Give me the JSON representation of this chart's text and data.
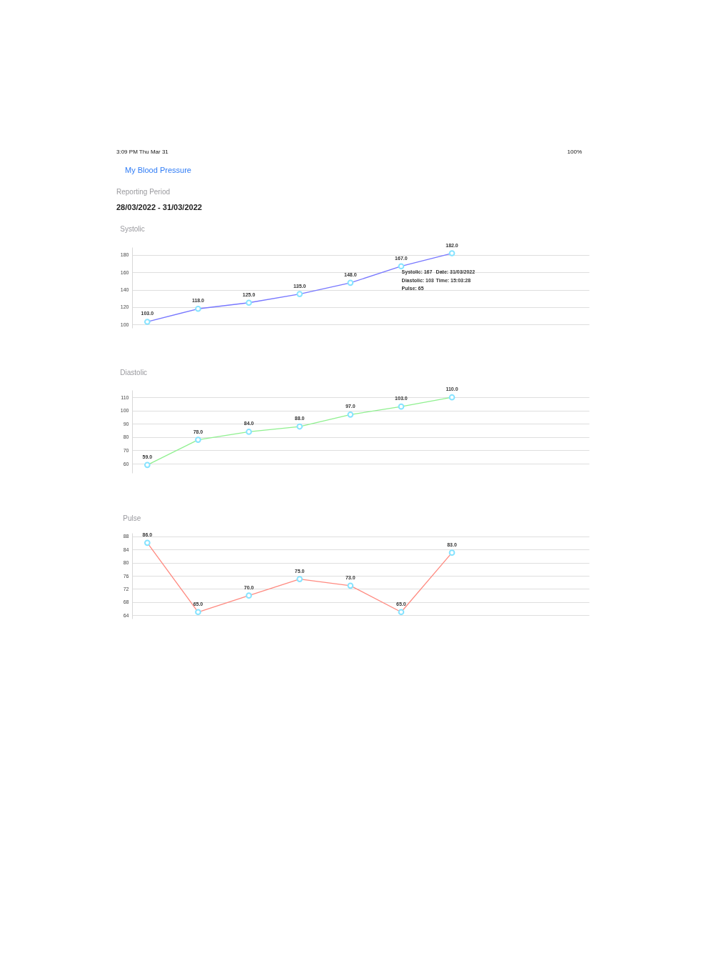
{
  "chart_data": [
    {
      "type": "other",
      "title": "Reporting Period",
      "subtitle": "28/03/2022 - 31/03/2022",
      "annotations": [
        "3:09 PM Thu Mar 31",
        "100%",
        "My Blood Pressure"
      ]
    },
    {
      "type": "line",
      "title": "Systolic",
      "categories": [
        null,
        null,
        null,
        null,
        null,
        null,
        null
      ],
      "values": [
        103,
        118,
        125,
        135,
        148,
        167,
        182
      ],
      "value_labels": [
        "103.0",
        "118.0",
        "125.0",
        "135.0",
        "148.0",
        "167.0",
        "182.0"
      ],
      "color": "#7777ff",
      "ylim": [
        96,
        189
      ],
      "yticks": [
        100,
        120,
        140,
        160,
        180
      ],
      "grid": "y",
      "tick_labels": "y",
      "marker": "circle",
      "line_style": "solid",
      "annotations": [
        "Systolic: 167",
        "Date: 31/03/2022",
        "Diastolic: 103",
        "Time: 15:03:28",
        "Pulse: 65"
      ]
    },
    {
      "type": "line",
      "title": "Diastolic",
      "categories": [
        null,
        null,
        null,
        null,
        null,
        null,
        null
      ],
      "values": [
        59,
        78,
        84,
        88,
        97,
        103,
        110
      ],
      "value_labels": [
        "59.0",
        "78.0",
        "84.0",
        "88.0",
        "97.0",
        "103.0",
        "110.0"
      ],
      "color": "#8ff08f",
      "ylim": [
        53,
        115.5
      ],
      "yticks": [
        60,
        70,
        80,
        90,
        100,
        110
      ],
      "grid": "y",
      "tick_labels": "y",
      "marker": "circle",
      "line_style": "solid"
    },
    {
      "type": "line",
      "title": "Pulse",
      "categories": [
        null,
        null,
        null,
        null,
        null,
        null,
        null
      ],
      "values": [
        86,
        65,
        70,
        75,
        73,
        65,
        83
      ],
      "value_labels": [
        "86.0",
        "65.0",
        "70.0",
        "75.0",
        "73.0",
        "65.0",
        "83.0"
      ],
      "color": "#ff8a80",
      "ylim": [
        63,
        89
      ],
      "yticks": [
        64,
        68,
        72,
        76,
        80,
        84,
        88
      ],
      "grid": "y",
      "tick_labels": "y",
      "marker": "circle",
      "line_style": "solid"
    }
  ]
}
